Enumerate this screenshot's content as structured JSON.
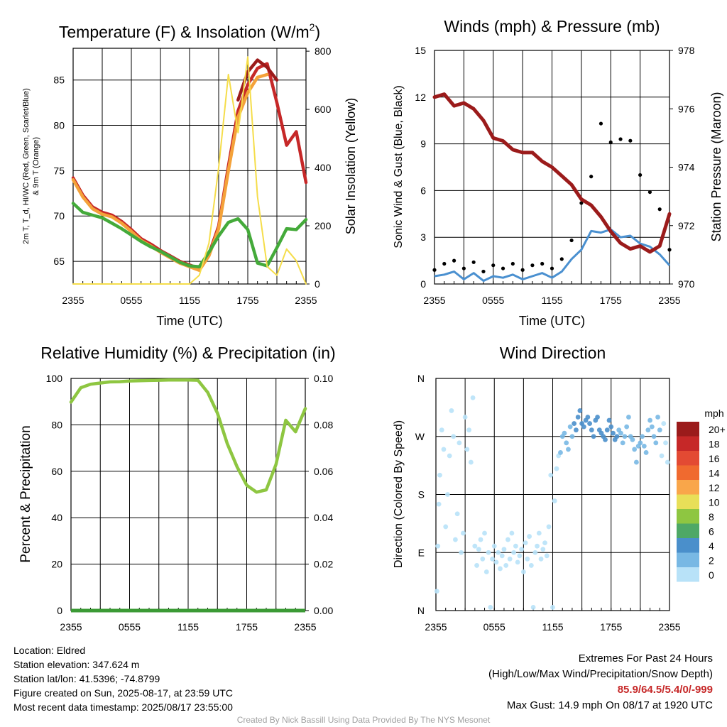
{
  "chart_data": [
    {
      "type": "line",
      "title": "Temperature (F) & Insolation (W/m",
      "title_sup": "2",
      "title_end": ")",
      "xlabel": "Time (UTC)",
      "ylabel_lines": [
        "2m T, T_d, HI/WC (Red, Green, Scarlet/Blue)",
        "& 9m T (Orange)"
      ],
      "ylabel_right": "Solar Insolation (Yellow)",
      "x_ticks": [
        "2355",
        "0555",
        "1155",
        "1755",
        "2355"
      ],
      "x": [
        0,
        1,
        2,
        3,
        4,
        5,
        6,
        7,
        8,
        9,
        10,
        11,
        12,
        13,
        14,
        15,
        16,
        17,
        18,
        19,
        20,
        21,
        22,
        23,
        24
      ],
      "ylim": [
        62.5,
        88.5
      ],
      "yticks": [
        65,
        70,
        75,
        80,
        85
      ],
      "y2lim": [
        0,
        810
      ],
      "y2ticks": [
        0,
        200,
        400,
        600,
        800
      ],
      "series": [
        {
          "name": "2m T",
          "color": "#c62828",
          "values": [
            74.2,
            72.3,
            71.0,
            70.4,
            70.1,
            69.4,
            68.5,
            67.5,
            66.9,
            66.2,
            65.6,
            65.0,
            64.6,
            64.2,
            65.8,
            68.9,
            75.5,
            81.6,
            84.5,
            86.3,
            86.8,
            82.5,
            77.8,
            79.3,
            73.7
          ]
        },
        {
          "name": "HI/WC",
          "color": "#9b1b1b",
          "values": [
            null,
            null,
            null,
            null,
            null,
            null,
            null,
            null,
            null,
            null,
            null,
            null,
            null,
            null,
            null,
            null,
            null,
            82.8,
            85.9,
            87.2,
            86.4,
            85.0,
            null,
            null,
            null
          ]
        },
        {
          "name": "9m T",
          "color": "#f4a23a",
          "values": [
            74.0,
            72.1,
            70.8,
            70.2,
            69.9,
            69.2,
            68.3,
            67.3,
            66.7,
            66.0,
            65.4,
            64.8,
            64.4,
            64.0,
            65.6,
            68.6,
            75.0,
            80.9,
            83.6,
            85.3,
            85.6,
            null,
            null,
            null,
            null
          ]
        },
        {
          "name": "T_d",
          "color": "#44aa3a",
          "values": [
            71.4,
            70.4,
            70.1,
            69.8,
            69.2,
            68.6,
            67.9,
            67.2,
            66.6,
            66.1,
            65.5,
            64.9,
            64.5,
            64.4,
            66.0,
            67.8,
            69.3,
            69.7,
            68.5,
            64.8,
            64.5,
            66.5,
            68.6,
            68.5,
            69.6
          ]
        },
        {
          "name": "Solar Insolation",
          "color": "#f5dd4a",
          "axis": "right",
          "values": [
            0,
            0,
            0,
            0,
            0,
            0,
            0,
            0,
            0,
            0,
            0,
            0,
            0,
            30,
            140,
            400,
            720,
            520,
            780,
            300,
            60,
            30,
            120,
            80,
            0
          ]
        }
      ]
    },
    {
      "type": "line",
      "title": "Winds (mph) & Pressure (mb)",
      "xlabel": "Time (UTC)",
      "ylabel": "Sonic Wind & Gust (Blue, Black)",
      "ylabel_right": "Station Pressure (Maroon)",
      "x_ticks": [
        "2355",
        "0555",
        "1155",
        "1755",
        "2355"
      ],
      "x": [
        0,
        1,
        2,
        3,
        4,
        5,
        6,
        7,
        8,
        9,
        10,
        11,
        12,
        13,
        14,
        15,
        16,
        17,
        18,
        19,
        20,
        21,
        22,
        23,
        24
      ],
      "ylim": [
        0,
        15
      ],
      "yticks": [
        0,
        3,
        6,
        9,
        12,
        15
      ],
      "y2lim": [
        970,
        978
      ],
      "y2ticks": [
        970,
        972,
        974,
        976,
        978
      ],
      "series": [
        {
          "name": "Sonic Wind",
          "color": "#4a90d0",
          "values": [
            0.5,
            0.6,
            0.8,
            0.3,
            0.7,
            0.2,
            0.5,
            0.4,
            0.6,
            0.3,
            0.5,
            0.7,
            0.4,
            0.8,
            1.6,
            2.2,
            3.4,
            3.3,
            3.5,
            3.0,
            3.1,
            2.6,
            2.4,
            1.9,
            1.2
          ]
        },
        {
          "name": "Gust",
          "color": "#000000",
          "values": [
            0.9,
            1.3,
            1.5,
            1.0,
            1.4,
            0.8,
            1.2,
            1.0,
            1.3,
            0.9,
            1.2,
            1.3,
            1.0,
            1.6,
            2.8,
            5.2,
            6.9,
            10.3,
            9.1,
            9.3,
            9.2,
            7.0,
            5.9,
            4.8,
            2.2
          ]
        },
        {
          "name": "Pressure",
          "color": "#9b1b1b",
          "axis": "right",
          "values": [
            976.4,
            976.5,
            976.1,
            976.2,
            976.0,
            975.6,
            975.0,
            974.9,
            974.6,
            974.5,
            974.5,
            974.2,
            974.0,
            973.7,
            973.4,
            972.9,
            972.7,
            972.3,
            971.8,
            971.4,
            971.2,
            971.3,
            971.1,
            971.3,
            972.4
          ]
        }
      ]
    },
    {
      "type": "line",
      "title": "Relative Humidity (%) & Precipitation (in)",
      "ylabel": "Percent & Precipitation",
      "x_ticks": [
        "2355",
        "0555",
        "1155",
        "1755",
        "2355"
      ],
      "x": [
        0,
        1,
        2,
        3,
        4,
        5,
        6,
        7,
        8,
        9,
        10,
        11,
        12,
        13,
        14,
        15,
        16,
        17,
        18,
        19,
        20,
        21,
        22,
        23,
        24
      ],
      "ylim": [
        0,
        100
      ],
      "yticks": [
        0,
        20,
        40,
        60,
        80,
        100
      ],
      "y2lim": [
        0,
        0.1
      ],
      "y2ticks": [
        "0.00",
        "0.02",
        "0.04",
        "0.06",
        "0.08",
        "0.10"
      ],
      "series": [
        {
          "name": "Relative Humidity",
          "color": "#8ec641",
          "values": [
            89.8,
            96.0,
            97.5,
            98.0,
            98.5,
            98.6,
            98.9,
            99.0,
            99.1,
            99.2,
            99.3,
            99.3,
            99.3,
            99.2,
            94.0,
            85.0,
            72.0,
            62.0,
            54.0,
            51.0,
            52.0,
            63.0,
            82.0,
            77.0,
            87.0
          ]
        },
        {
          "name": "Precipitation",
          "color": "#3b9a35",
          "axis": "right",
          "values": [
            0,
            0,
            0,
            0,
            0,
            0,
            0,
            0,
            0,
            0,
            0,
            0,
            0,
            0,
            0,
            0,
            0,
            0,
            0,
            0,
            0,
            0,
            0,
            0,
            0
          ]
        }
      ]
    },
    {
      "type": "scatter",
      "title": "Wind Direction",
      "ylabel": "Direction (Colored By Speed)",
      "x_ticks": [
        "2355",
        "0555",
        "1155",
        "1755",
        "2355"
      ],
      "y_ticks": [
        "N",
        "E",
        "S",
        "W",
        "N"
      ],
      "ylim": [
        0,
        360
      ],
      "points": [
        [
          0.1,
          30,
          0
        ],
        [
          0.2,
          100,
          0
        ],
        [
          0.3,
          165,
          0
        ],
        [
          0.4,
          210,
          0
        ],
        [
          0.6,
          280,
          0
        ],
        [
          0.8,
          250,
          0
        ],
        [
          1.0,
          130,
          0
        ],
        [
          1.2,
          180,
          0
        ],
        [
          1.4,
          240,
          0
        ],
        [
          1.6,
          310,
          0
        ],
        [
          1.8,
          270,
          0
        ],
        [
          2.0,
          110,
          0
        ],
        [
          2.2,
          150,
          0
        ],
        [
          2.4,
          260,
          0
        ],
        [
          2.6,
          90,
          0
        ],
        [
          2.8,
          120,
          0
        ],
        [
          3.0,
          300,
          0
        ],
        [
          3.2,
          250,
          0
        ],
        [
          3.4,
          280,
          0
        ],
        [
          3.6,
          230,
          0
        ],
        [
          3.8,
          330,
          0
        ],
        [
          4.0,
          100,
          0
        ],
        [
          4.2,
          70,
          0
        ],
        [
          4.4,
          95,
          0
        ],
        [
          4.6,
          110,
          0
        ],
        [
          4.8,
          80,
          0
        ],
        [
          5.0,
          120,
          0
        ],
        [
          5.2,
          60,
          0
        ],
        [
          5.4,
          90,
          0
        ],
        [
          5.6,
          5,
          0
        ],
        [
          5.8,
          80,
          0
        ],
        [
          6.0,
          100,
          0
        ],
        [
          6.2,
          75,
          0
        ],
        [
          6.4,
          90,
          0
        ],
        [
          6.6,
          65,
          0
        ],
        [
          6.8,
          85,
          0
        ],
        [
          7.0,
          95,
          0
        ],
        [
          7.2,
          70,
          0
        ],
        [
          7.4,
          110,
          0
        ],
        [
          7.6,
          80,
          0
        ],
        [
          7.8,
          120,
          0
        ],
        [
          8.0,
          90,
          0
        ],
        [
          8.2,
          100,
          0
        ],
        [
          8.4,
          75,
          0
        ],
        [
          8.6,
          85,
          0
        ],
        [
          8.8,
          95,
          0
        ],
        [
          9.0,
          60,
          0
        ],
        [
          9.2,
          105,
          0
        ],
        [
          9.4,
          80,
          0
        ],
        [
          9.6,
          115,
          0
        ],
        [
          9.8,
          70,
          0
        ],
        [
          10.0,
          5,
          0
        ],
        [
          10.2,
          90,
          0
        ],
        [
          10.4,
          100,
          0
        ],
        [
          10.6,
          120,
          0
        ],
        [
          10.8,
          80,
          0
        ],
        [
          11.0,
          95,
          0
        ],
        [
          11.2,
          105,
          0
        ],
        [
          11.4,
          85,
          0
        ],
        [
          11.6,
          130,
          0
        ],
        [
          11.8,
          210,
          0
        ],
        [
          12.0,
          5,
          0
        ],
        [
          12.2,
          170,
          0
        ],
        [
          12.4,
          220,
          0
        ],
        [
          12.6,
          240,
          0
        ],
        [
          12.8,
          245,
          2
        ],
        [
          13.0,
          270,
          2
        ],
        [
          13.2,
          275,
          2
        ],
        [
          13.4,
          260,
          2
        ],
        [
          13.6,
          250,
          2
        ],
        [
          13.8,
          285,
          2
        ],
        [
          14.0,
          270,
          2
        ],
        [
          14.2,
          290,
          4
        ],
        [
          14.4,
          280,
          4
        ],
        [
          14.6,
          300,
          4
        ],
        [
          14.8,
          310,
          4
        ],
        [
          15.0,
          290,
          4
        ],
        [
          15.2,
          285,
          4
        ],
        [
          15.4,
          295,
          4
        ],
        [
          15.6,
          300,
          4
        ],
        [
          15.8,
          290,
          4
        ],
        [
          16.0,
          280,
          4
        ],
        [
          16.2,
          270,
          4
        ],
        [
          16.4,
          295,
          4
        ],
        [
          16.6,
          300,
          4
        ],
        [
          16.8,
          280,
          4
        ],
        [
          17.0,
          275,
          4
        ],
        [
          17.2,
          270,
          4
        ],
        [
          17.4,
          265,
          4
        ],
        [
          17.6,
          280,
          4
        ],
        [
          17.8,
          295,
          4
        ],
        [
          18.0,
          285,
          4
        ],
        [
          18.2,
          275,
          4
        ],
        [
          18.4,
          265,
          4
        ],
        [
          18.6,
          270,
          4
        ],
        [
          18.8,
          280,
          2
        ],
        [
          19.0,
          275,
          2
        ],
        [
          19.2,
          260,
          2
        ],
        [
          19.4,
          270,
          2
        ],
        [
          19.6,
          285,
          2
        ],
        [
          19.8,
          300,
          2
        ],
        [
          20.0,
          270,
          2
        ],
        [
          20.2,
          265,
          2
        ],
        [
          20.4,
          250,
          2
        ],
        [
          20.6,
          230,
          2
        ],
        [
          20.8,
          255,
          2
        ],
        [
          21.0,
          260,
          2
        ],
        [
          21.2,
          270,
          2
        ],
        [
          21.4,
          255,
          2
        ],
        [
          21.6,
          245,
          2
        ],
        [
          21.8,
          280,
          2
        ],
        [
          22.0,
          295,
          2
        ],
        [
          22.2,
          285,
          2
        ],
        [
          22.4,
          270,
          2
        ],
        [
          22.6,
          260,
          2
        ],
        [
          22.8,
          300,
          2
        ],
        [
          23.0,
          280,
          2
        ],
        [
          23.2,
          240,
          0
        ],
        [
          23.4,
          290,
          0
        ],
        [
          23.6,
          260,
          0
        ],
        [
          23.8,
          230,
          0
        ]
      ],
      "legend_title": "mph",
      "legend": [
        {
          "label": "20+",
          "color": "#9b1b1b"
        },
        {
          "label": "18",
          "color": "#c62828"
        },
        {
          "label": "16",
          "color": "#e34a33"
        },
        {
          "label": "14",
          "color": "#f06a2f"
        },
        {
          "label": "12",
          "color": "#f9a64a"
        },
        {
          "label": "10",
          "color": "#e8df58"
        },
        {
          "label": "8",
          "color": "#8ec641"
        },
        {
          "label": "6",
          "color": "#4ea866"
        },
        {
          "label": "4",
          "color": "#4a8fcb"
        },
        {
          "label": "2",
          "color": "#78b8e4"
        },
        {
          "label": "0",
          "color": "#b8e2f8"
        }
      ]
    }
  ],
  "info": {
    "location": "Location: Eldred",
    "elevation": "Station elevation: 347.624 m",
    "latlon": "Station lat/lon: 41.5396; -74.8799",
    "created": "Figure created on Sun, 2025-08-17, at 23:59 UTC",
    "recent": "Most recent data timestamp: 2025/08/17 23:55:00"
  },
  "extremes": {
    "title": "Extremes For Past 24 Hours",
    "subtitle": "(High/Low/Max Wind/Precipitation/Snow Depth)",
    "values": "85.9/64.5/5.4/0/-999",
    "gust": "Max Gust: 14.9 mph On 08/17 at 1920 UTC"
  },
  "credit": "Created By Nick Bassill Using Data Provided By The NYS Mesonet"
}
